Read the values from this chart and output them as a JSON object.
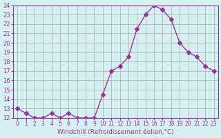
{
  "x": [
    0,
    1,
    2,
    3,
    4,
    5,
    6,
    7,
    8,
    9,
    10,
    11,
    12,
    13,
    14,
    15,
    16,
    17,
    18,
    19,
    20,
    21,
    22,
    23
  ],
  "y": [
    13.0,
    12.5,
    12.0,
    12.0,
    12.5,
    12.0,
    12.5,
    12.0,
    12.0,
    12.0,
    14.5,
    17.0,
    17.5,
    18.5,
    21.5,
    23.0,
    24.0,
    23.5,
    22.5,
    20.0,
    19.0,
    18.5,
    17.5,
    17.0
  ],
  "line_color": "#993399",
  "marker": "D",
  "marker_size": 3,
  "bg_color": "#d4f0f0",
  "grid_color": "#aaaaaa",
  "xlabel": "Windchill (Refroidissement éolien,°C)",
  "xlabel_color": "#993399",
  "tick_color": "#993399",
  "ylim": [
    12,
    24
  ],
  "xlim_min": -0.5,
  "xlim_max": 23.5,
  "yticks": [
    12,
    13,
    14,
    15,
    16,
    17,
    18,
    19,
    20,
    21,
    22,
    23,
    24
  ],
  "xticks": [
    0,
    1,
    2,
    3,
    4,
    5,
    6,
    7,
    8,
    9,
    10,
    11,
    12,
    13,
    14,
    15,
    16,
    17,
    18,
    19,
    20,
    21,
    22,
    23
  ],
  "xtick_labels": [
    "0",
    "1",
    "2",
    "3",
    "4",
    "5",
    "6",
    "7",
    "8",
    "9",
    "10",
    "11",
    "12",
    "13",
    "14",
    "15",
    "16",
    "17",
    "18",
    "19",
    "20",
    "21",
    "22",
    "23"
  ],
  "figsize": [
    3.2,
    2.0
  ],
  "dpi": 100
}
